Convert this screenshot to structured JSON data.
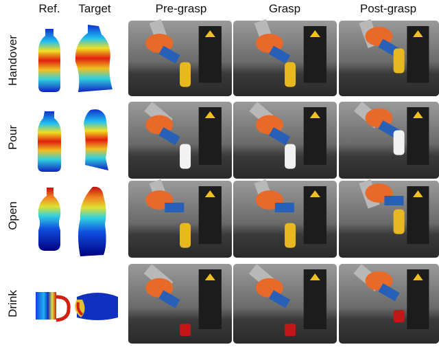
{
  "columns": [
    "Ref.",
    "Target",
    "Pre-grasp",
    "Grasp",
    "Post-grasp"
  ],
  "rows": [
    "Handover",
    "Pour",
    "Open",
    "Drink"
  ]
}
